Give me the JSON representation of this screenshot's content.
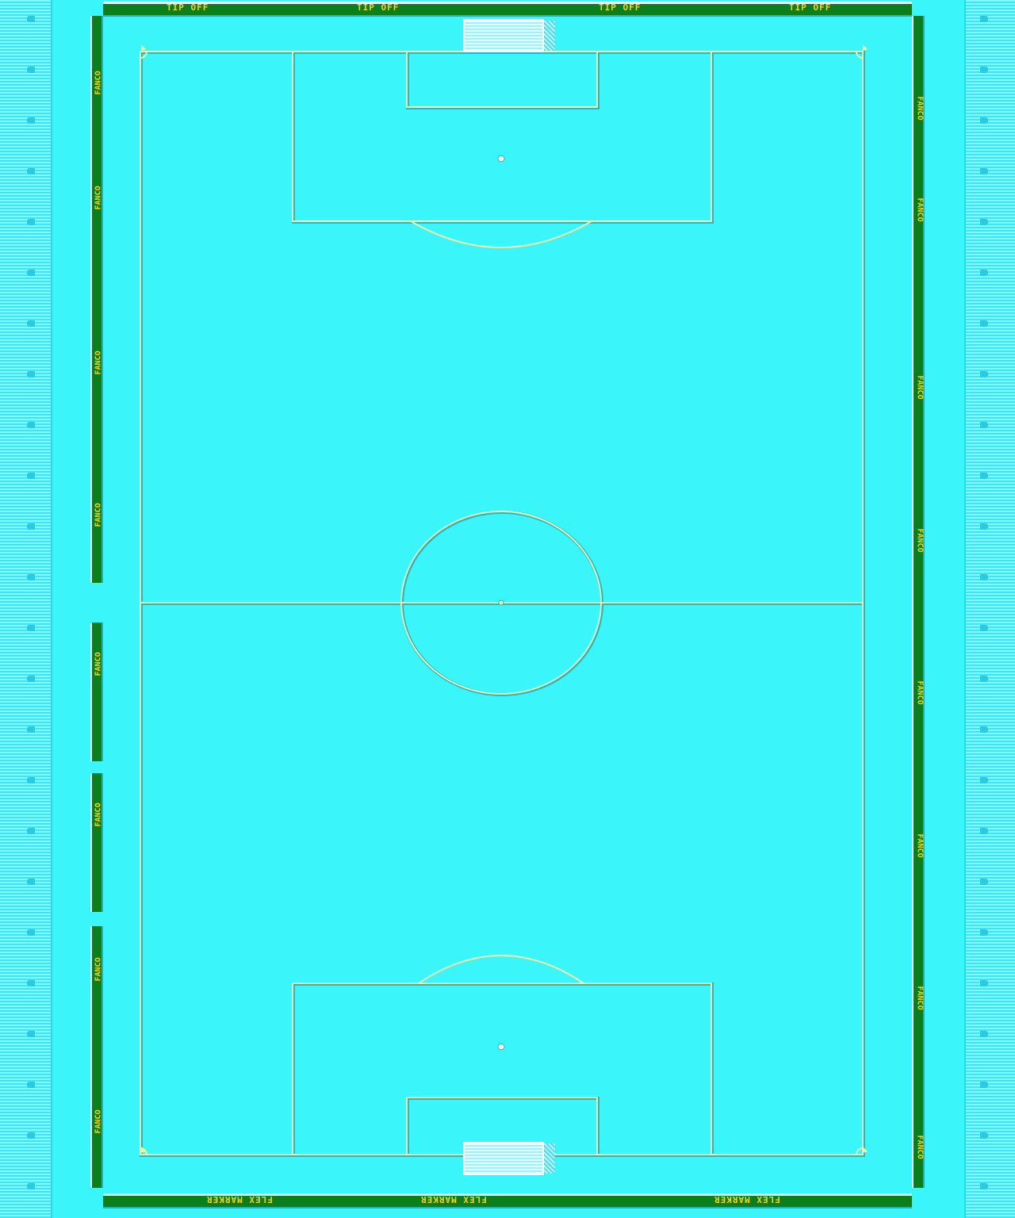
{
  "game": {
    "scene": "top-down football pitch",
    "colors": {
      "grass": "#3af6fb",
      "lines": "#f2f0a8",
      "line_shadow": "#1fb8cc",
      "board": "#0a7f1c",
      "board_text": "#f4d21c",
      "stands": "#7ef9ff"
    }
  },
  "boards": {
    "top_text": "TIP OFF",
    "bottom_text": "FLEX MARKER",
    "side_text": "FANCO"
  }
}
